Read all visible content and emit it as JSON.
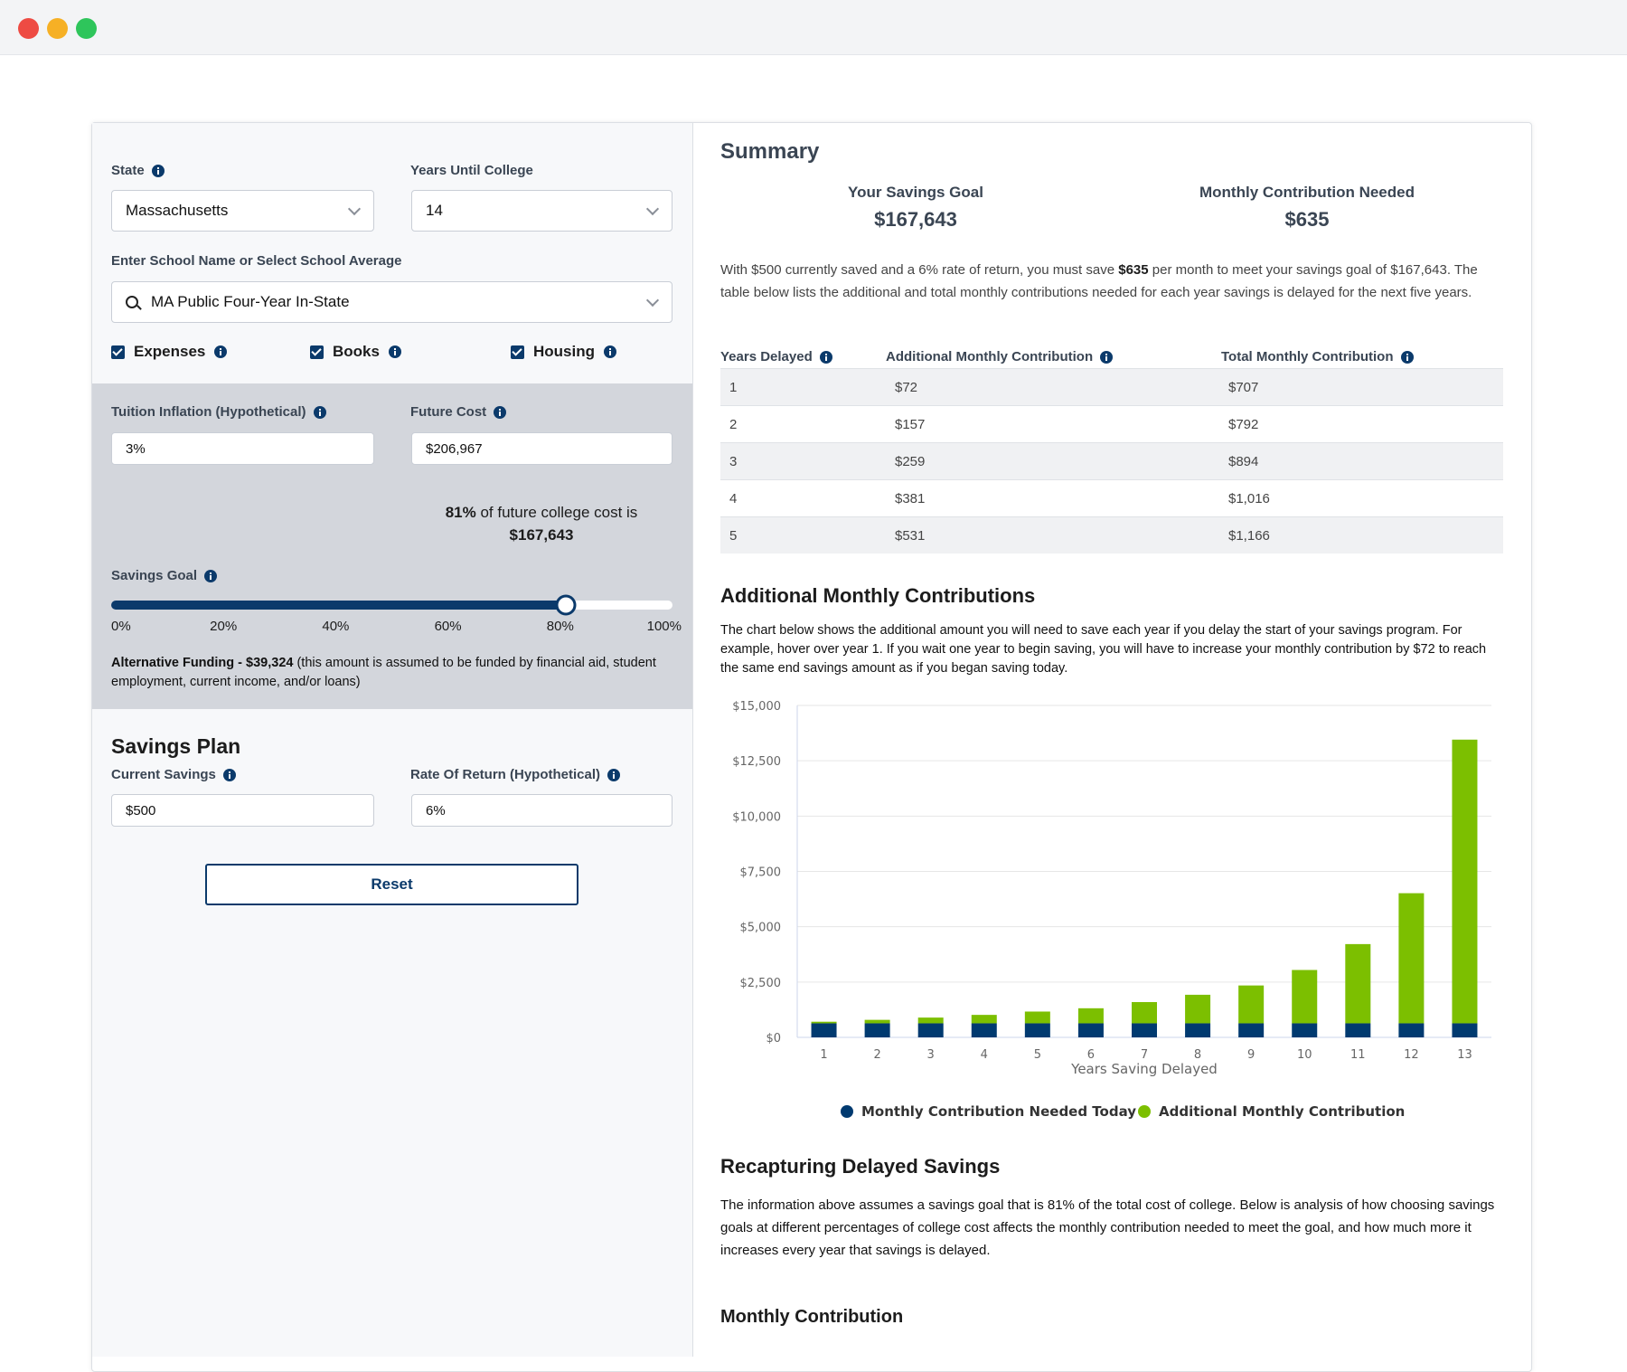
{
  "form": {
    "state": {
      "label": "State",
      "value": "Massachusetts"
    },
    "years_until_college": {
      "label": "Years Until College",
      "value": "14"
    },
    "school": {
      "label": "Enter School Name or Select School Average",
      "value": "MA Public Four-Year In-State"
    },
    "options": [
      "Expenses",
      "Books",
      "Housing"
    ],
    "tuition_inflation": {
      "label": "Tuition Inflation (Hypothetical)",
      "value": "3%"
    },
    "future_cost": {
      "label": "Future Cost",
      "value": "$206,967"
    },
    "goal_note": [
      "81%",
      " of future college cost is",
      "$167,643"
    ],
    "savings_goal": {
      "label": "Savings Goal",
      "value": 81,
      "xlim": [
        0,
        100
      ],
      "ticks": [
        {
          "value": 0,
          "label": "0%"
        },
        {
          "value": 20,
          "label": "20%"
        },
        {
          "value": 40,
          "label": "40%"
        },
        {
          "value": 60,
          "label": "60%"
        },
        {
          "value": 80,
          "label": "80%"
        },
        {
          "value": 100,
          "label": "100%"
        }
      ]
    },
    "alternative_funding": [
      "Alternative Funding - $39,324",
      " (this amount is assumed to be funded by financial aid, student employment, current income, and/or loans)"
    ],
    "savings_plan": {
      "title": "Savings Plan",
      "current_savings": {
        "label": "Current Savings",
        "value": "$500"
      },
      "rate_of_return": {
        "label": "Rate Of Return (Hypothetical)",
        "value": "6%"
      }
    },
    "reset": "Reset"
  },
  "summary": {
    "title": "Summary",
    "savings_goal": {
      "label": "Your Savings Goal",
      "value": "$167,643"
    },
    "monthly_needed": {
      "label": "Monthly Contribution Needed",
      "value": "$635"
    },
    "description": [
      "With $500 currently saved and a 6% rate of return, you must save ",
      "$635",
      " per month to meet your savings goal of $167,643. The table below lists the additional and total monthly contributions needed for each year savings is delayed for the next five years."
    ]
  },
  "table": {
    "columns": [
      "Years Delayed",
      "Additional Monthly Contribution",
      "Total Monthly Contribution"
    ],
    "rows": [
      [
        "1",
        "$72",
        "$707"
      ],
      [
        "2",
        "$157",
        "$792"
      ],
      [
        "3",
        "$259",
        "$894"
      ],
      [
        "4",
        "$381",
        "$1,016"
      ],
      [
        "5",
        "$531",
        "$1,166"
      ]
    ]
  },
  "additional_section": {
    "title": "Additional Monthly Contributions",
    "text": "The chart below shows the additional amount you will need to save each year if you delay the start of your savings program. For example, hover over year 1. If you wait one year to begin saving, you will have to increase your monthly contribution by $72 to reach the same end savings amount as if you began saving today."
  },
  "chart_data": {
    "type": "bar",
    "stacked": true,
    "x_label": "Years Saving Delayed",
    "categories": [
      "1",
      "2",
      "3",
      "4",
      "5",
      "6",
      "7",
      "8",
      "9",
      "10",
      "11",
      "12",
      "13"
    ],
    "series": [
      {
        "name": "Monthly Contribution Needed Today",
        "color": "#003a70",
        "values": [
          635,
          635,
          635,
          635,
          635,
          635,
          635,
          635,
          635,
          635,
          635,
          635,
          635
        ]
      },
      {
        "name": "Additional Monthly Contribution",
        "color": "#7cbf00",
        "values": [
          72,
          157,
          259,
          381,
          531,
          680,
          960,
          1290,
          1710,
          2410,
          3580,
          5880,
          12820
        ]
      }
    ],
    "ylim": [
      0,
      15000
    ],
    "yticks": [
      {
        "value": 0,
        "label": "$0"
      },
      {
        "value": 2500,
        "label": "$2,500"
      },
      {
        "value": 5000,
        "label": "$5,000"
      },
      {
        "value": 7500,
        "label": "$7,500"
      },
      {
        "value": 10000,
        "label": "$10,000"
      },
      {
        "value": 12500,
        "label": "$12,500"
      },
      {
        "value": 15000,
        "label": "$15,000"
      }
    ],
    "grid": true,
    "legend": "bottom"
  },
  "recapture_section": {
    "title": "Recapturing Delayed Savings",
    "text": "The information above assumes a savings goal that is 81% of the total cost of college. Below is analysis of how choosing savings goals at different percentages of college cost affects the monthly contribution needed to meet the goal, and how much more it increases every year that savings is delayed."
  },
  "monthly_section": {
    "title": "Monthly Contribution"
  }
}
